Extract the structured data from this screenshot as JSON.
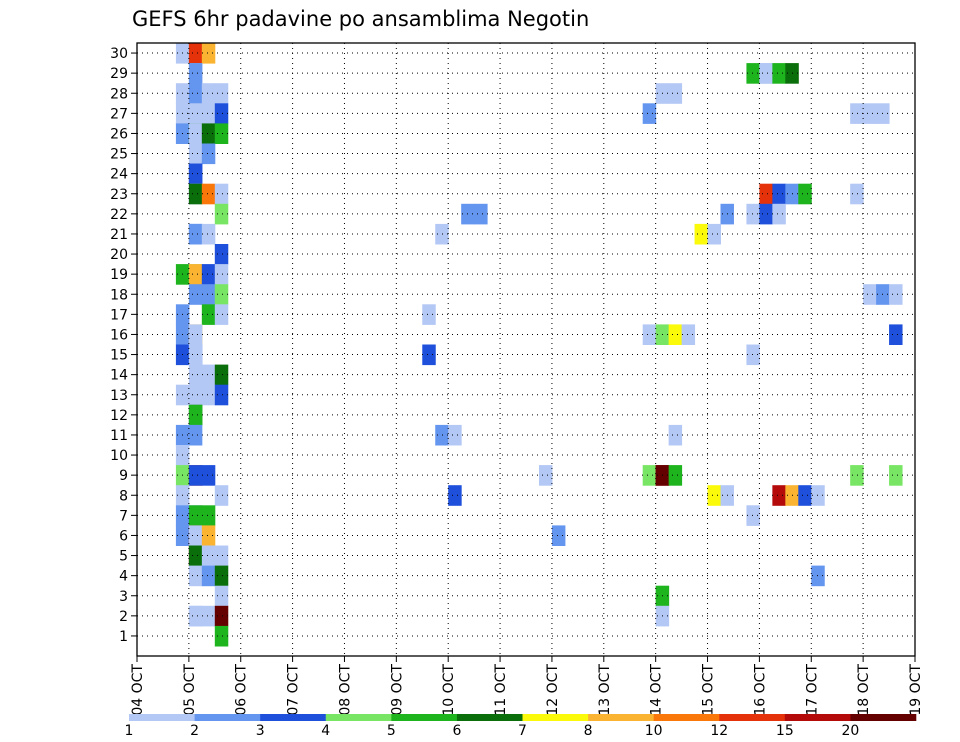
{
  "chart_data": {
    "type": "heatmap",
    "title": "GEFS 6hr padavine po ansamblima Negotin",
    "xlabel": "",
    "ylabel": "",
    "x_ticks": [
      "04 OCT",
      "05 OCT",
      "06 OCT",
      "07 OCT",
      "08 OCT",
      "09 OCT",
      "10 OCT",
      "11 OCT",
      "12 OCT",
      "13 OCT",
      "14 OCT",
      "15 OCT",
      "16 OCT",
      "17 OCT",
      "18 OCT",
      "19 OCT"
    ],
    "y_ticks": [
      "1",
      "2",
      "3",
      "4",
      "5",
      "6",
      "7",
      "8",
      "9",
      "10",
      "11",
      "12",
      "13",
      "14",
      "15",
      "16",
      "17",
      "18",
      "19",
      "20",
      "21",
      "22",
      "23",
      "24",
      "25",
      "26",
      "27",
      "28",
      "29",
      "30"
    ],
    "xlim_days": [
      0,
      15
    ],
    "ylim": [
      0,
      30
    ],
    "step_hours": 6,
    "grid": true,
    "legend": {
      "placement": "bottom",
      "labels": [
        "1",
        "2",
        "3",
        "4",
        "5",
        "6",
        "7",
        "8",
        "10",
        "12",
        "15",
        "20"
      ],
      "colors": [
        "#b4c8f5",
        "#6496f0",
        "#1e50dc",
        "#78e664",
        "#1eb41e",
        "#0a6e0a",
        "#fafa0a",
        "#fab432",
        "#fa780a",
        "#e6320a",
        "#b40a0a",
        "#640000"
      ]
    },
    "cells_note": "each cell is [member, day, step, level]; time = day + step*0.25",
    "cells": [
      [
        30,
        0,
        3,
        0
      ],
      [
        30,
        0,
        4,
        0
      ],
      [
        30,
        1,
        0,
        9
      ],
      [
        30,
        1,
        1,
        7
      ],
      [
        29,
        0,
        4,
        0
      ],
      [
        29,
        1,
        0,
        1
      ],
      [
        29,
        11,
        3,
        4
      ],
      [
        29,
        11,
        4,
        0
      ],
      [
        29,
        12,
        0,
        0
      ],
      [
        29,
        12,
        1,
        4
      ],
      [
        29,
        12,
        2,
        5
      ],
      [
        28,
        0,
        3,
        0
      ],
      [
        28,
        0,
        4,
        1
      ],
      [
        28,
        1,
        1,
        0
      ],
      [
        28,
        1,
        2,
        0
      ],
      [
        28,
        10,
        0,
        0
      ],
      [
        28,
        10,
        1,
        0
      ],
      [
        27,
        0,
        3,
        0
      ],
      [
        27,
        0,
        4,
        0
      ],
      [
        27,
        1,
        1,
        0
      ],
      [
        27,
        1,
        2,
        2
      ],
      [
        27,
        9,
        3,
        1
      ],
      [
        27,
        13,
        3,
        0
      ],
      [
        27,
        13,
        4,
        0
      ],
      [
        27,
        13,
        5,
        0
      ],
      [
        26,
        0,
        3,
        1
      ],
      [
        26,
        0,
        4,
        4
      ],
      [
        26,
        1,
        0,
        0
      ],
      [
        26,
        1,
        1,
        5
      ],
      [
        26,
        1,
        2,
        4
      ],
      [
        25,
        0,
        4,
        0
      ],
      [
        25,
        1,
        1,
        1
      ],
      [
        24,
        0,
        4,
        2
      ],
      [
        24,
        1,
        0,
        2
      ],
      [
        23,
        0,
        4,
        0
      ],
      [
        23,
        1,
        0,
        5
      ],
      [
        23,
        1,
        1,
        8
      ],
      [
        23,
        1,
        2,
        0
      ],
      [
        23,
        12,
        0,
        9
      ],
      [
        23,
        12,
        1,
        2
      ],
      [
        23,
        12,
        2,
        1
      ],
      [
        23,
        12,
        3,
        4
      ],
      [
        23,
        13,
        3,
        0
      ],
      [
        22,
        1,
        2,
        3
      ],
      [
        22,
        6,
        1,
        1
      ],
      [
        22,
        6,
        2,
        1
      ],
      [
        22,
        11,
        1,
        1
      ],
      [
        22,
        11,
        3,
        0
      ],
      [
        22,
        12,
        0,
        2
      ],
      [
        22,
        12,
        1,
        0
      ],
      [
        21,
        0,
        4,
        1
      ],
      [
        21,
        1,
        0,
        1
      ],
      [
        21,
        1,
        1,
        0
      ],
      [
        21,
        5,
        3,
        0
      ],
      [
        21,
        10,
        3,
        6
      ],
      [
        21,
        10,
        4,
        0
      ],
      [
        20,
        1,
        2,
        2
      ],
      [
        19,
        0,
        3,
        4
      ],
      [
        19,
        0,
        4,
        3
      ],
      [
        19,
        1,
        0,
        7
      ],
      [
        19,
        1,
        1,
        2
      ],
      [
        19,
        1,
        2,
        0
      ],
      [
        18,
        0,
        4,
        1
      ],
      [
        18,
        1,
        1,
        1
      ],
      [
        18,
        1,
        2,
        3
      ],
      [
        18,
        14,
        0,
        0
      ],
      [
        18,
        14,
        1,
        1
      ],
      [
        18,
        14,
        2,
        0
      ],
      [
        17,
        0,
        3,
        1
      ],
      [
        17,
        1,
        1,
        4
      ],
      [
        17,
        1,
        2,
        0
      ],
      [
        17,
        5,
        2,
        0
      ],
      [
        16,
        0,
        3,
        1
      ],
      [
        16,
        0,
        4,
        7
      ],
      [
        16,
        1,
        0,
        0
      ],
      [
        16,
        9,
        3,
        0
      ],
      [
        16,
        9,
        4,
        3
      ],
      [
        16,
        10,
        1,
        6
      ],
      [
        16,
        10,
        2,
        0
      ],
      [
        16,
        14,
        2,
        2
      ],
      [
        15,
        0,
        3,
        2
      ],
      [
        15,
        0,
        4,
        1
      ],
      [
        15,
        1,
        0,
        0
      ],
      [
        15,
        5,
        2,
        2
      ],
      [
        15,
        11,
        3,
        0
      ],
      [
        14,
        1,
        0,
        0
      ],
      [
        14,
        1,
        1,
        0
      ],
      [
        14,
        1,
        2,
        5
      ],
      [
        13,
        0,
        3,
        0
      ],
      [
        13,
        0,
        4,
        0
      ],
      [
        13,
        1,
        1,
        0
      ],
      [
        13,
        1,
        2,
        2
      ],
      [
        12,
        0,
        4,
        5
      ],
      [
        12,
        1,
        0,
        4
      ],
      [
        11,
        0,
        3,
        1
      ],
      [
        11,
        0,
        4,
        1
      ],
      [
        11,
        5,
        3,
        1
      ],
      [
        11,
        5,
        4,
        0
      ],
      [
        11,
        10,
        1,
        0
      ],
      [
        10,
        0,
        3,
        0
      ],
      [
        9,
        0,
        3,
        3
      ],
      [
        9,
        0,
        4,
        9
      ],
      [
        9,
        1,
        0,
        2
      ],
      [
        9,
        1,
        1,
        2
      ],
      [
        9,
        7,
        3,
        0
      ],
      [
        9,
        9,
        3,
        3
      ],
      [
        9,
        9,
        4,
        10
      ],
      [
        9,
        10,
        0,
        11
      ],
      [
        9,
        10,
        1,
        4
      ],
      [
        9,
        13,
        3,
        3
      ],
      [
        9,
        14,
        2,
        3
      ],
      [
        8,
        0,
        3,
        0
      ],
      [
        8,
        1,
        2,
        0
      ],
      [
        8,
        5,
        4,
        2
      ],
      [
        8,
        10,
        4,
        6
      ],
      [
        8,
        10,
        5,
        0
      ],
      [
        8,
        12,
        1,
        10
      ],
      [
        8,
        12,
        2,
        7
      ],
      [
        8,
        12,
        3,
        2
      ],
      [
        8,
        13,
        0,
        0
      ],
      [
        7,
        0,
        3,
        1
      ],
      [
        7,
        0,
        4,
        1
      ],
      [
        7,
        1,
        0,
        4
      ],
      [
        7,
        1,
        1,
        4
      ],
      [
        7,
        11,
        3,
        0
      ],
      [
        6,
        0,
        3,
        1
      ],
      [
        6,
        0,
        4,
        9
      ],
      [
        6,
        1,
        0,
        0
      ],
      [
        6,
        1,
        1,
        7
      ],
      [
        6,
        8,
        0,
        1
      ],
      [
        5,
        0,
        4,
        10
      ],
      [
        5,
        1,
        0,
        5
      ],
      [
        5,
        1,
        1,
        0
      ],
      [
        5,
        1,
        2,
        0
      ],
      [
        4,
        0,
        4,
        0
      ],
      [
        4,
        1,
        1,
        1
      ],
      [
        4,
        1,
        2,
        5
      ],
      [
        4,
        13,
        0,
        1
      ],
      [
        3,
        1,
        2,
        0
      ],
      [
        3,
        10,
        0,
        4
      ],
      [
        2,
        0,
        4,
        0
      ],
      [
        2,
        1,
        0,
        0
      ],
      [
        2,
        1,
        1,
        0
      ],
      [
        2,
        1,
        2,
        11
      ],
      [
        2,
        10,
        0,
        0
      ],
      [
        1,
        1,
        2,
        4
      ]
    ]
  }
}
